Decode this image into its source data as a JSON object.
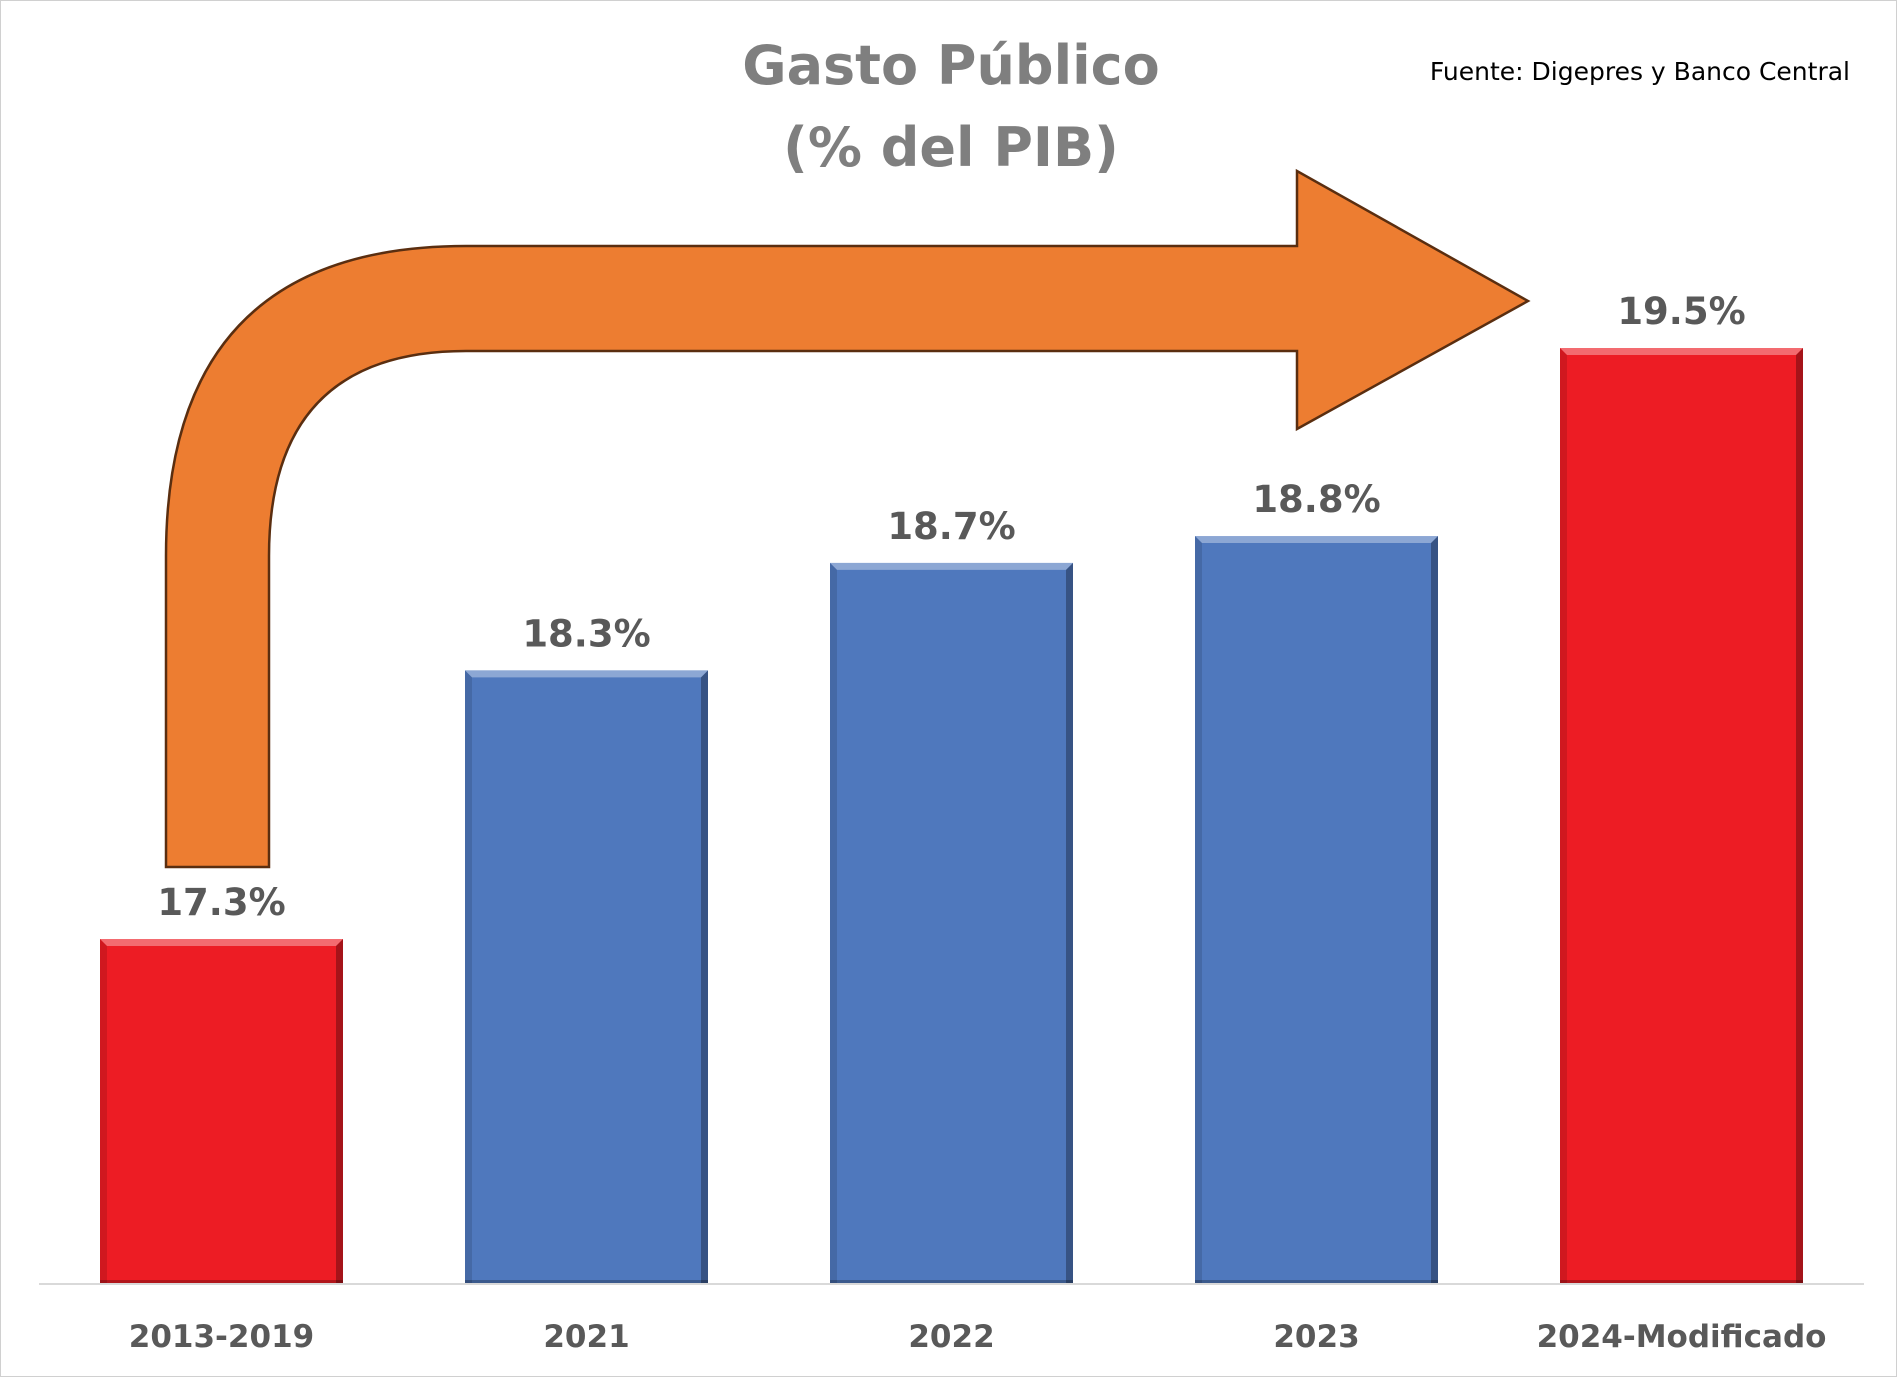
{
  "chart_data": {
    "type": "bar",
    "title": "Gasto Público",
    "subtitle": "(% del PIB)",
    "source_note": "Fuente: Digepres y Banco Central",
    "xlabel": "",
    "ylabel": "",
    "ylim": [
      0,
      20
    ],
    "grid": false,
    "legend": "none",
    "categories": [
      "2013-2019",
      "2021",
      "2022",
      "2023",
      "2024-Modificado"
    ],
    "values": [
      17.3,
      18.3,
      18.7,
      18.8,
      19.5
    ],
    "data_labels": [
      "17.3%",
      "18.3%",
      "18.7%",
      "18.8%",
      "19.5%"
    ],
    "bar_colors": [
      "#ed1c24",
      "#4f78bd",
      "#4f78bd",
      "#4f78bd",
      "#ed1c24"
    ],
    "annotation": {
      "shape": "bent-arrow",
      "from_category": "2013-2019",
      "to_category": "2024-Modificado",
      "fill_color": "#ed7d31",
      "outline_color": "#5a2e10"
    }
  }
}
